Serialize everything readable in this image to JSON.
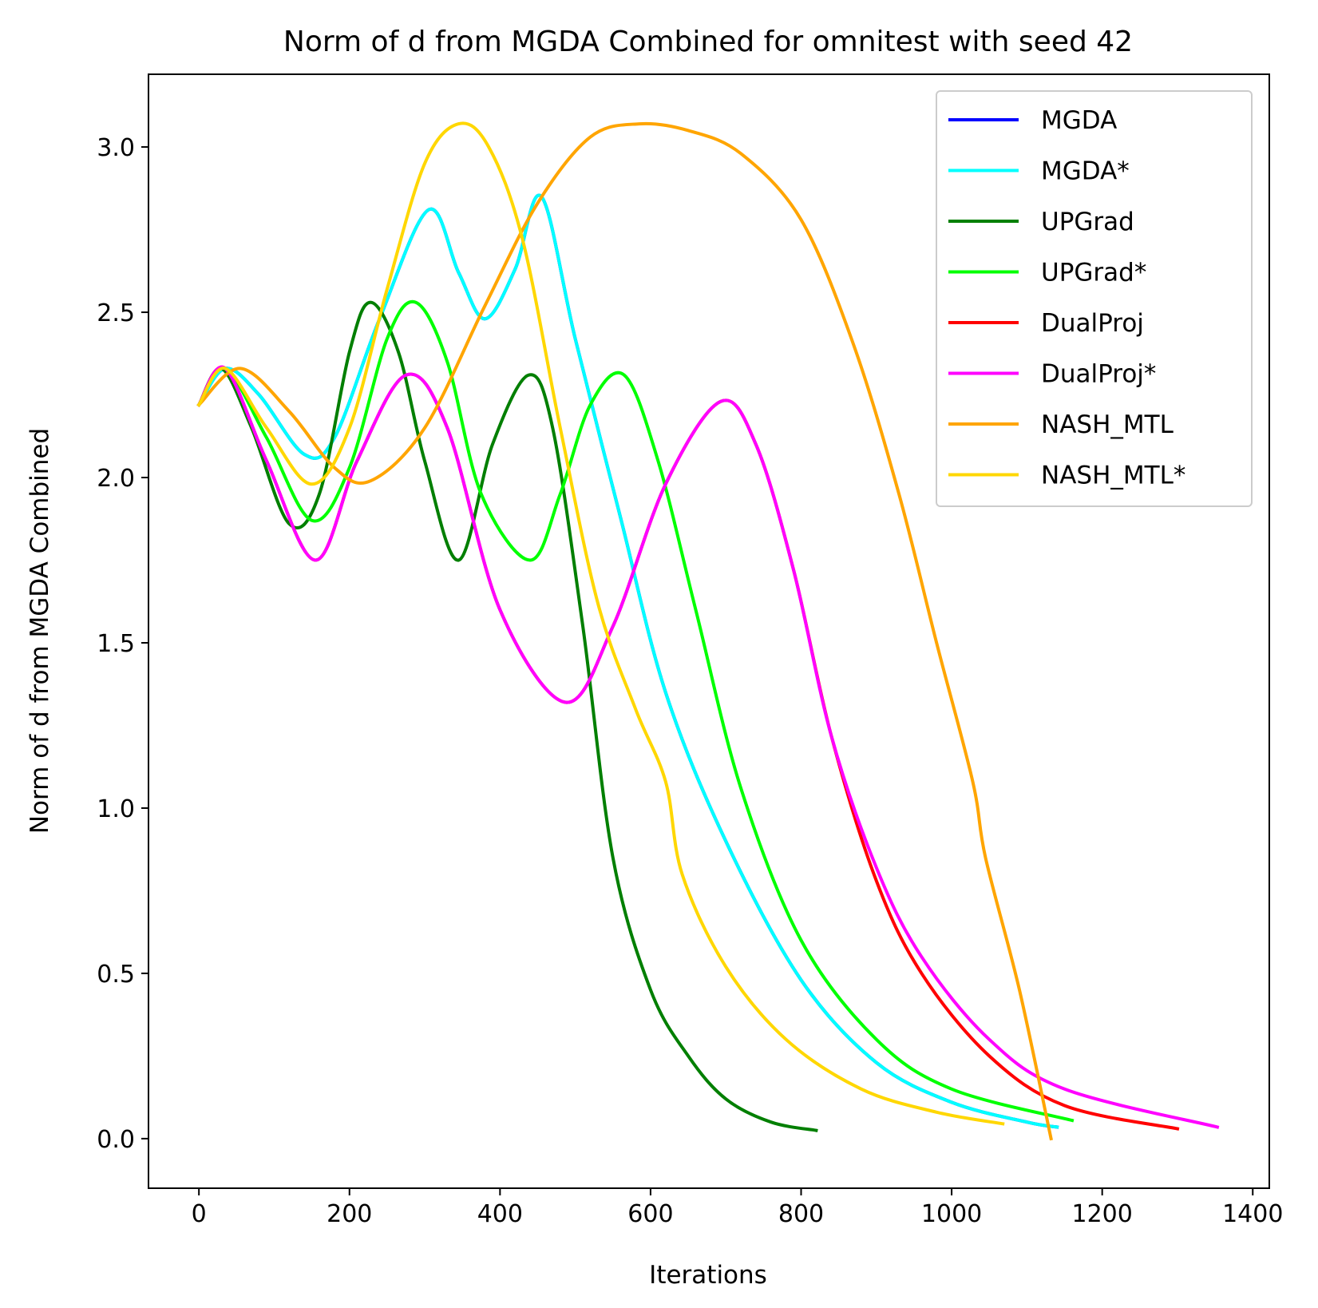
{
  "chart_data": {
    "type": "line",
    "title": "Norm of d from MGDA Combined for omnitest with seed 42",
    "xlabel": "Iterations",
    "ylabel": "Norm of d from MGDA Combined",
    "xlim": [
      -67,
      1422
    ],
    "ylim": [
      -0.15,
      3.22
    ],
    "xticks": [
      0,
      200,
      400,
      600,
      800,
      1000,
      1200,
      1400
    ],
    "xtick_labels": [
      "0",
      "200",
      "400",
      "600",
      "800",
      "1000",
      "1200",
      "1400"
    ],
    "yticks": [
      0.0,
      0.5,
      1.0,
      1.5,
      2.0,
      2.5,
      3.0
    ],
    "ytick_labels": [
      "0.0",
      "0.5",
      "1.0",
      "1.5",
      "2.0",
      "2.5",
      "3.0"
    ],
    "grid": false,
    "legend_position": "top-right",
    "series": [
      {
        "name": "MGDA",
        "color": "#0000ff",
        "x": [
          0,
          35,
          80,
          140,
          180,
          240,
          305,
          345,
          380,
          420,
          455,
          500,
          560,
          620,
          700,
          800,
          900,
          1000,
          1100,
          1140
        ],
        "y": [
          2.22,
          2.33,
          2.25,
          2.07,
          2.12,
          2.48,
          2.81,
          2.62,
          2.48,
          2.63,
          2.85,
          2.42,
          1.88,
          1.35,
          0.9,
          0.48,
          0.23,
          0.11,
          0.05,
          0.035
        ]
      },
      {
        "name": "MGDA*",
        "color": "#00ffff",
        "x": [
          0,
          35,
          80,
          140,
          180,
          240,
          305,
          345,
          380,
          420,
          455,
          500,
          560,
          620,
          700,
          800,
          900,
          1000,
          1100,
          1140
        ],
        "y": [
          2.22,
          2.33,
          2.25,
          2.07,
          2.12,
          2.48,
          2.81,
          2.62,
          2.48,
          2.63,
          2.85,
          2.42,
          1.88,
          1.35,
          0.9,
          0.48,
          0.23,
          0.11,
          0.05,
          0.035
        ]
      },
      {
        "name": "UPGrad",
        "color": "#007f00",
        "x": [
          0,
          30,
          70,
          120,
          160,
          200,
          228,
          265,
          300,
          345,
          390,
          438,
          470,
          510,
          550,
          600,
          650,
          700,
          760,
          820
        ],
        "y": [
          2.22,
          2.33,
          2.15,
          1.86,
          1.95,
          2.38,
          2.53,
          2.38,
          2.05,
          1.75,
          2.1,
          2.31,
          2.15,
          1.55,
          0.85,
          0.45,
          0.25,
          0.12,
          0.05,
          0.025
        ]
      },
      {
        "name": "UPGrad*",
        "color": "#00ff00",
        "x": [
          0,
          35,
          90,
          150,
          200,
          250,
          288,
          330,
          375,
          440,
          480,
          520,
          565,
          610,
          660,
          720,
          800,
          900,
          1000,
          1160
        ],
        "y": [
          2.22,
          2.33,
          2.12,
          1.87,
          2.03,
          2.42,
          2.53,
          2.35,
          1.95,
          1.75,
          1.95,
          2.22,
          2.31,
          2.05,
          1.6,
          1.06,
          0.6,
          0.3,
          0.15,
          0.055
        ]
      },
      {
        "name": "DualProj",
        "color": "#ff0000",
        "x": [
          0,
          35,
          90,
          155,
          210,
          275,
          330,
          400,
          487,
          550,
          620,
          693,
          740,
          790,
          840,
          900,
          960,
          1050,
          1150,
          1300
        ],
        "y": [
          2.22,
          2.33,
          2.05,
          1.75,
          2.05,
          2.31,
          2.15,
          1.6,
          1.32,
          1.55,
          1.98,
          2.23,
          2.1,
          1.72,
          1.22,
          0.78,
          0.5,
          0.25,
          0.1,
          0.03
        ]
      },
      {
        "name": "DualProj*",
        "color": "#ff00ff",
        "x": [
          0,
          35,
          90,
          155,
          210,
          275,
          330,
          400,
          487,
          550,
          620,
          693,
          740,
          790,
          840,
          900,
          960,
          1050,
          1150,
          1353
        ],
        "y": [
          2.22,
          2.33,
          2.05,
          1.75,
          2.05,
          2.31,
          2.15,
          1.6,
          1.32,
          1.55,
          1.98,
          2.23,
          2.1,
          1.72,
          1.22,
          0.82,
          0.55,
          0.3,
          0.15,
          0.035
        ]
      },
      {
        "name": "NASH_MTL",
        "color": "#ffa500",
        "x": [
          0,
          55,
          120,
          180,
          228,
          300,
          380,
          450,
          520,
          585,
          650,
          720,
          800,
          870,
          930,
          980,
          1028,
          1045,
          1090,
          1132
        ],
        "y": [
          2.22,
          2.33,
          2.2,
          2.03,
          1.99,
          2.15,
          2.52,
          2.83,
          3.03,
          3.07,
          3.05,
          2.98,
          2.78,
          2.4,
          1.95,
          1.5,
          1.08,
          0.85,
          0.45,
          0.0
        ]
      },
      {
        "name": "NASH_MTL*",
        "color": "#ffd700",
        "x": [
          0,
          35,
          90,
          150,
          200,
          250,
          300,
          345,
          385,
          430,
          480,
          530,
          580,
          620,
          642,
          700,
          780,
          880,
          980,
          1068
        ],
        "y": [
          2.22,
          2.33,
          2.15,
          1.98,
          2.15,
          2.57,
          2.95,
          3.07,
          3.0,
          2.72,
          2.15,
          1.62,
          1.3,
          1.08,
          0.8,
          0.52,
          0.3,
          0.15,
          0.08,
          0.045
        ]
      }
    ]
  }
}
